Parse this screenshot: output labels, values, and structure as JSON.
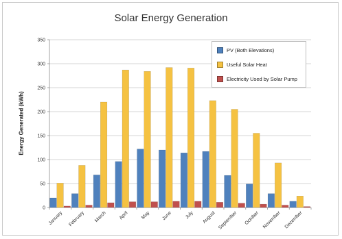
{
  "chart_data": {
    "type": "bar",
    "title": "Solar Energy Generation",
    "xlabel": "",
    "ylabel": "Energy Generated (kWh)",
    "ylim": [
      0,
      350
    ],
    "yticks": [
      0,
      50,
      100,
      150,
      200,
      250,
      300,
      350
    ],
    "grid": true,
    "legend_position": "top-right",
    "categories": [
      "January",
      "February",
      "March",
      "April",
      "May",
      "June",
      "July",
      "August",
      "September",
      "October",
      "November",
      "December"
    ],
    "series": [
      {
        "name": "PV (Both Elevations)",
        "color": "#4f81bd",
        "values": [
          20,
          29,
          68,
          96,
          122,
          120,
          114,
          117,
          67,
          49,
          29,
          13
        ]
      },
      {
        "name": "Useful Solar Heat",
        "color": "#f5c242",
        "values": [
          51,
          88,
          220,
          287,
          284,
          292,
          291,
          223,
          205,
          155,
          93,
          24
        ]
      },
      {
        "name": "Electricity Used by Solar Pump",
        "color": "#c0504d",
        "values": [
          3,
          5,
          10,
          12,
          12,
          13,
          13,
          11,
          9,
          7,
          5,
          2
        ]
      }
    ]
  }
}
